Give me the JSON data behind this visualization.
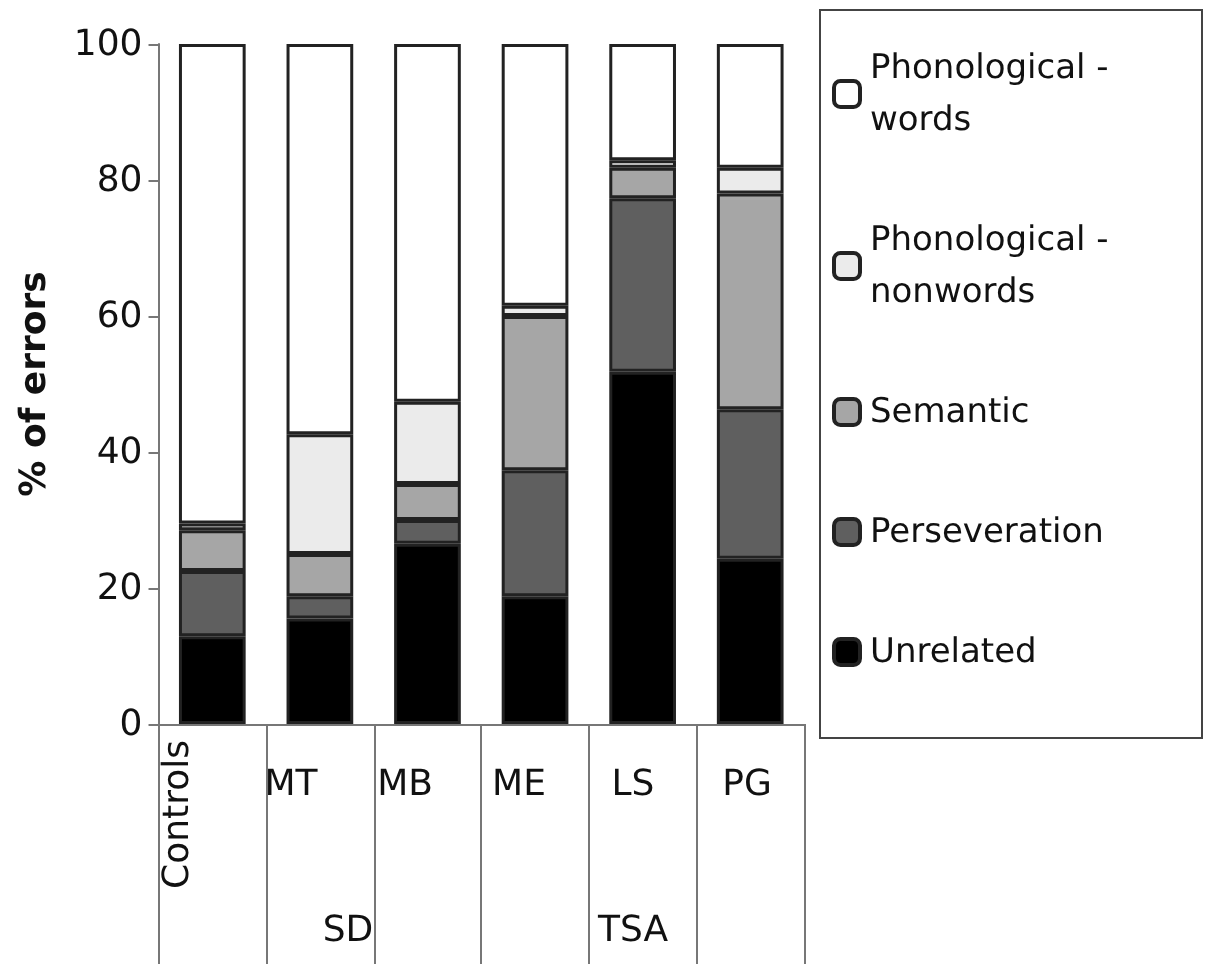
{
  "chart_data": {
    "type": "bar",
    "stacked": true,
    "ylabel": "% of errors",
    "categories": [
      "Controls",
      "MT",
      "MB",
      "ME",
      "LS",
      "PG"
    ],
    "series": [
      {
        "name": "Unrelated",
        "color": "#000000",
        "values": [
          12.9,
          15.5,
          26.5,
          18.8,
          51.8,
          24.3
        ]
      },
      {
        "name": "Perseveration",
        "color": "#5f5f5f",
        "values": [
          9.6,
          3.3,
          3.5,
          18.5,
          25.5,
          22.0
        ]
      },
      {
        "name": "Semantic",
        "color": "#a6a6a6",
        "values": [
          6.0,
          6.2,
          5.3,
          22.7,
          4.5,
          31.7
        ]
      },
      {
        "name": "Phonological - nonwords",
        "color": "#ebebeb",
        "values": [
          1.0,
          17.6,
          12.1,
          1.5,
          1.1,
          3.8
        ]
      },
      {
        "name": "Phonological - words",
        "color": "#ffffff",
        "values": [
          70.5,
          57.4,
          52.6,
          38.5,
          17.1,
          18.2
        ]
      }
    ],
    "annotations": [
      "SD",
      "TSA"
    ],
    "ylim": [
      0,
      100
    ],
    "yticks": [
      0,
      20,
      40,
      60,
      80,
      100
    ],
    "grid": false,
    "legend": "right"
  }
}
